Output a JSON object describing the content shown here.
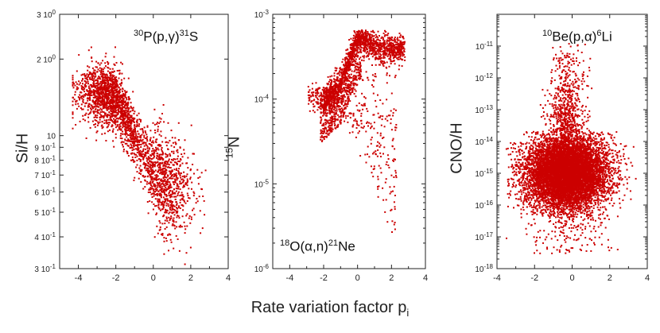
{
  "figure": {
    "xlabel_main": "Rate variation factor p",
    "xlabel_sub": "i",
    "marker_color": "#cc0000"
  },
  "chart_data": [
    {
      "type": "scatter",
      "id": "si",
      "title": "30P(p,γ)31S",
      "annotation": {
        "pre": "30",
        "a": "P(p,",
        "gamma": "γ",
        "b": ")",
        "sup2": "31",
        "c": "S"
      },
      "ylabel": "Si/H",
      "xlabel": "",
      "xlim": [
        -5,
        4
      ],
      "ylim": [
        0.3,
        3.0
      ],
      "yscale": "log",
      "xticks": [
        -4,
        -2,
        0,
        2,
        4
      ],
      "yticks": [
        {
          "value": 3.0,
          "label": "3 10",
          "exp": "0"
        },
        {
          "value": 2.0,
          "label": "2 10",
          "exp": "0"
        },
        {
          "value": 1.0,
          "label": "10",
          "exp": ""
        },
        {
          "value": 0.9,
          "label": "9 10",
          "exp": "-1"
        },
        {
          "value": 0.8,
          "label": "8 10",
          "exp": "-1"
        },
        {
          "value": 0.7,
          "label": "7 10",
          "exp": "-1"
        },
        {
          "value": 0.6,
          "label": "6 10",
          "exp": "-1"
        },
        {
          "value": 0.5,
          "label": "5 10",
          "exp": "-1"
        },
        {
          "value": 0.4,
          "label": "4 10",
          "exp": "-1"
        },
        {
          "value": 0.3,
          "label": "3 10",
          "exp": "-1"
        }
      ],
      "trend": [
        [
          -3.6,
          1.48
        ],
        [
          -2.0,
          1.42
        ],
        [
          -1.6,
          1.25
        ],
        [
          -1.0,
          1.0
        ],
        [
          -0.5,
          0.85
        ],
        [
          0.0,
          0.72
        ],
        [
          0.8,
          0.64
        ],
        [
          2.4,
          0.58
        ]
      ],
      "spread_dex": 0.06,
      "point_count": 2600
    },
    {
      "type": "scatter",
      "id": "n15",
      "title": "18O(α,n)21Ne",
      "annotation": {
        "pre": "18",
        "a": "O(",
        "alpha": "α",
        "b": ",n)",
        "sup2": "21",
        "c": "Ne"
      },
      "ylabel": "15N",
      "ylabel_sup": "15",
      "ylabel_main": "N",
      "xlabel": "",
      "xlim": [
        -5,
        4
      ],
      "ylim": [
        1e-06,
        0.001
      ],
      "yscale": "log",
      "xticks": [
        -4,
        -2,
        0,
        2,
        4
      ],
      "yticks": [
        {
          "value": 0.001,
          "label": "10",
          "exp": "-3"
        },
        {
          "value": 0.0001,
          "label": "10",
          "exp": "-4"
        },
        {
          "value": 1e-05,
          "label": "10",
          "exp": "-5"
        },
        {
          "value": 1e-06,
          "label": "10",
          "exp": "-6"
        }
      ],
      "upper_branch": [
        [
          -2.0,
          0.0001
        ],
        [
          -1.0,
          0.00016
        ],
        [
          0.0,
          0.00055
        ],
        [
          1.5,
          0.00038
        ],
        [
          2.8,
          0.00039
        ]
      ],
      "lower_branch": [
        [
          -2.8,
          0.0001
        ],
        [
          -1.0,
          9e-05
        ],
        [
          0.0,
          3e-05
        ],
        [
          1.0,
          1e-05
        ],
        [
          2.2,
          2e-06
        ]
      ],
      "point_count": 2400
    },
    {
      "type": "scatter",
      "id": "cno",
      "title": "10Be(p,α)6Li",
      "annotation": {
        "pre": "10",
        "a": "Be(p,",
        "alpha": "α",
        "b": ")",
        "sup2": "6",
        "c": "Li"
      },
      "ylabel": "CNO/H",
      "xlabel": "",
      "xlim": [
        -4,
        4
      ],
      "ylim": [
        1e-18,
        1e-10
      ],
      "yscale": "log",
      "xticks": [
        -4,
        -2,
        0,
        2,
        4
      ],
      "yticks": [
        {
          "value": 1e-11,
          "label": "10",
          "exp": "-11"
        },
        {
          "value": 1e-12,
          "label": "10",
          "exp": "-12"
        },
        {
          "value": 1e-13,
          "label": "10",
          "exp": "-13"
        },
        {
          "value": 1e-14,
          "label": "10",
          "exp": "-14"
        },
        {
          "value": 1e-15,
          "label": "10",
          "exp": "-15"
        },
        {
          "value": 1e-16,
          "label": "10",
          "exp": "-16"
        },
        {
          "value": 1e-17,
          "label": "10",
          "exp": "-17"
        },
        {
          "value": 1e-18,
          "label": "10",
          "exp": "-18"
        }
      ],
      "center": [
        -0.3,
        1e-15
      ],
      "x_spread": 1.1,
      "y_spread_dex": 0.55,
      "y_range": [
        3e-18,
        1.2e-11
      ],
      "point_count": 9000
    }
  ]
}
